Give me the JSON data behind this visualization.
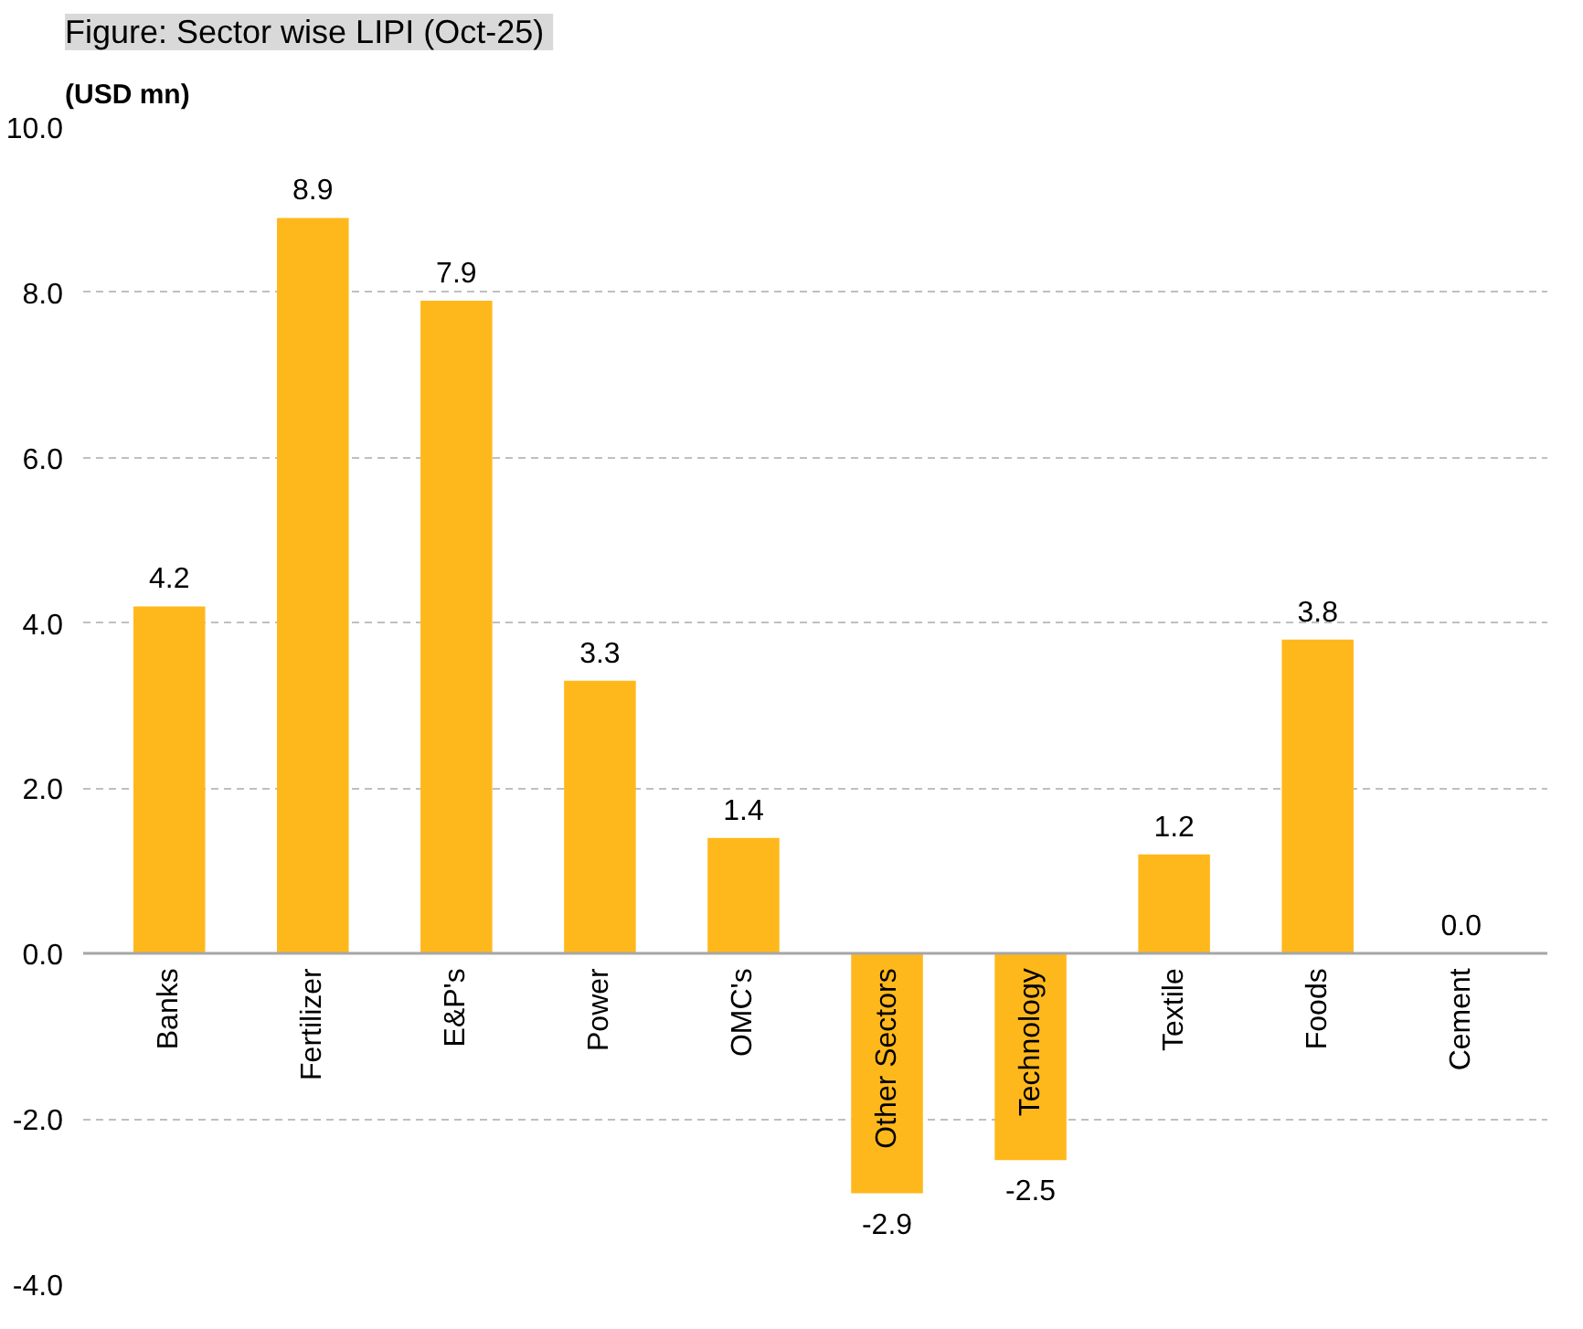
{
  "chart_data": {
    "type": "bar",
    "title": "Figure:  Sector wise LIPI (Oct-25)",
    "ylabel": "(USD mn)",
    "categories": [
      "Banks",
      "Fertilizer",
      "E&P's",
      "Power",
      "OMC's",
      "Other Sectors",
      "Technology",
      "Textile",
      "Foods",
      "Cement"
    ],
    "values": [
      4.2,
      8.9,
      7.9,
      3.3,
      1.4,
      -2.9,
      -2.5,
      1.2,
      3.8,
      0.0
    ],
    "color": "#ffb81c",
    "value_labels": [
      "4.2",
      "8.9",
      "7.9",
      "3.3",
      "1.4",
      "-2.9",
      "-2.5",
      "1.2",
      "3.8",
      "0.0"
    ],
    "grid": "y",
    "ylim": [
      -4,
      10
    ],
    "yticks": [
      {
        "value": -4,
        "label": "-4.0"
      },
      {
        "value": -2,
        "label": "-2.0"
      },
      {
        "value": 0,
        "label": "0.0"
      },
      {
        "value": 2,
        "label": "2.0"
      },
      {
        "value": 4,
        "label": "4.0"
      },
      {
        "value": 6,
        "label": "6.0"
      },
      {
        "value": 8,
        "label": "8.0"
      },
      {
        "value": 10,
        "label": "10.0"
      }
    ]
  }
}
